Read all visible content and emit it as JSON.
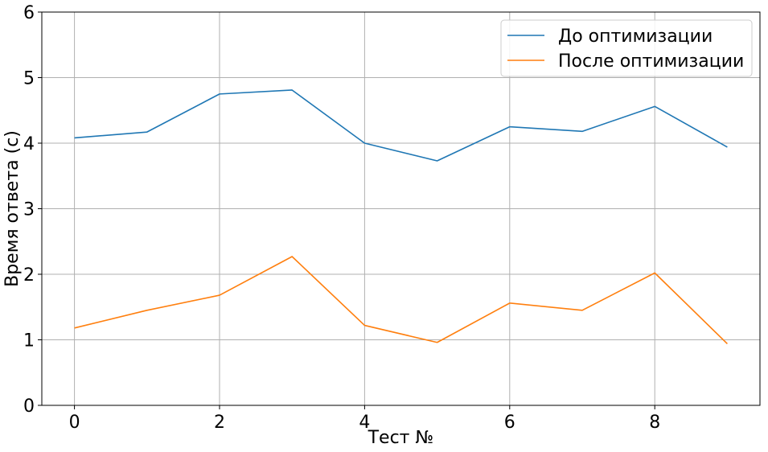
{
  "chart_data": {
    "type": "line",
    "title": "",
    "xlabel": "Тест №",
    "ylabel": "Время ответа (с)",
    "x": [
      0,
      1,
      2,
      3,
      4,
      5,
      6,
      7,
      8,
      9
    ],
    "xlim": [
      -0.45,
      9.45
    ],
    "ylim": [
      0,
      6
    ],
    "xticks": [
      0,
      2,
      4,
      6,
      8
    ],
    "yticks": [
      0,
      1,
      2,
      3,
      4,
      5,
      6
    ],
    "grid": true,
    "legend_position": "top-right",
    "series": [
      {
        "name": "До оптимизации",
        "color": "#1f77b4",
        "values": [
          4.08,
          4.17,
          4.75,
          4.81,
          4.0,
          3.73,
          4.25,
          4.18,
          4.56,
          3.94
        ]
      },
      {
        "name": "После оптимизации",
        "color": "#ff7f0e",
        "values": [
          1.18,
          1.45,
          1.68,
          2.27,
          1.22,
          0.96,
          1.56,
          1.45,
          2.02,
          0.94
        ]
      }
    ]
  }
}
